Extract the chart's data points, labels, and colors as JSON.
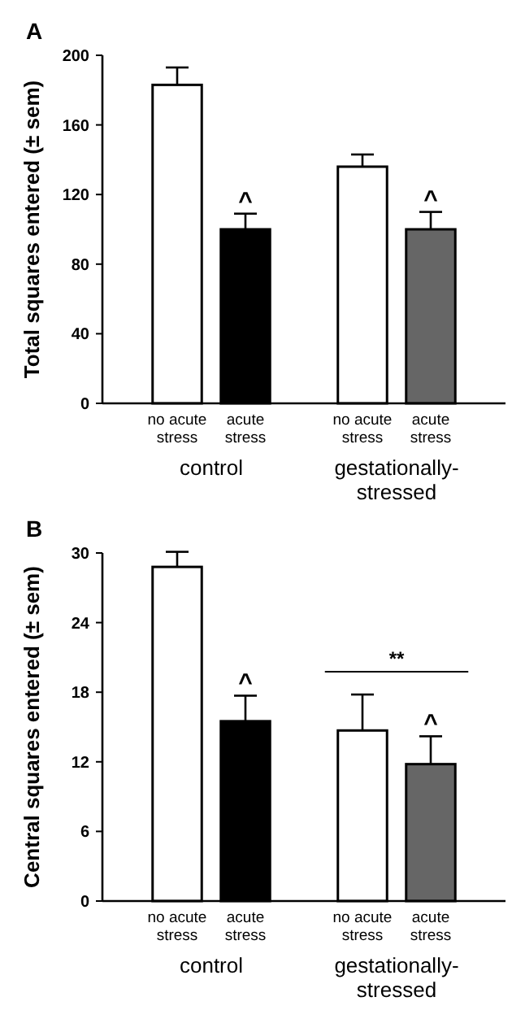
{
  "chart_data": [
    {
      "type": "bar",
      "title": "A",
      "ylabel": "Total squares entered (± sem)",
      "categories": [
        "no acute stress",
        "acute stress",
        "no acute stress",
        "acute stress"
      ],
      "values": [
        183,
        100,
        136,
        100
      ],
      "errors": [
        10,
        9,
        7,
        10
      ],
      "colors": [
        "#ffffff",
        "#000000",
        "#ffffff",
        "#666666"
      ],
      "ylim": [
        0,
        200
      ],
      "yticks": [
        0,
        40,
        80,
        120,
        160,
        200
      ],
      "annotations": [
        "control",
        "gestationally-stressed",
        {
          "text": "^"
        },
        {
          "text": "^"
        }
      ]
    },
    {
      "type": "bar",
      "title": "B",
      "ylabel": "Central squares entered (± sem)",
      "categories": [
        "no acute stress",
        "acute stress",
        "no acute stress",
        "acute stress"
      ],
      "values": [
        28.8,
        15.5,
        14.7,
        11.8
      ],
      "errors": [
        1.3,
        2.2,
        3.1,
        2.4
      ],
      "colors": [
        "#ffffff",
        "#000000",
        "#ffffff",
        "#666666"
      ],
      "ylim": [
        0,
        30
      ],
      "yticks": [
        0,
        6,
        12,
        18,
        24,
        30
      ],
      "annotations": [
        "control",
        "gestationally-stressed",
        {
          "text": "^"
        },
        {
          "text": "^"
        },
        {
          "text": "**"
        }
      ]
    }
  ]
}
